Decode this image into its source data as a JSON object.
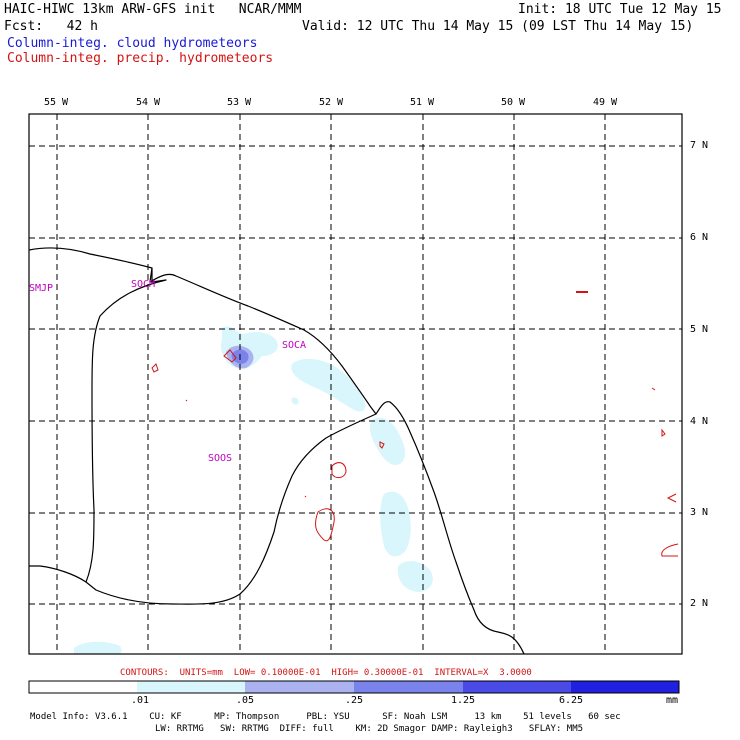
{
  "header": {
    "title": "HAIC-HIWC 13km ARW-GFS init   NCAR/MMM",
    "init": "Init: 18 UTC Tue 12 May 15",
    "fcst": "Fcst:   42 h",
    "valid": "Valid: 12 UTC Thu 14 May 15 (09 LST Thu 14 May 15)",
    "field1": "Column-integ. cloud hydrometeors",
    "field2": "Column-integ. precip. hydrometeors"
  },
  "colors": {
    "field1": "#1a1ad6",
    "field2": "#d41414",
    "station": "#c000c0",
    "cloud_light": "#d8f6fc",
    "cloud_mid": "#aab3f0",
    "cloud_dark": "#7a82ec",
    "precip_contour": "#d41414"
  },
  "map": {
    "lon_labels": [
      "55 W",
      "54 W",
      "53 W",
      "52 W",
      "51 W",
      "50 W",
      "49 W"
    ],
    "lat_labels": [
      "7 N",
      "6 N",
      "5 N",
      "4 N",
      "3 N",
      "2 N"
    ],
    "stations": [
      "SMJP",
      "SOCM",
      "SOCA",
      "SOOS"
    ]
  },
  "footer": {
    "contours": "CONTOURS:  UNITS=mm  LOW= 0.10000E-01  HIGH= 0.30000E-01  INTERVAL=X  3.0000",
    "colorbar_labels": [
      ".01",
      ".05",
      ".25",
      "1.25",
      "6.25"
    ],
    "colorbar_unit": "mm",
    "colorbar_colors": [
      "#ffffff",
      "#d8f6fc",
      "#aab3f0",
      "#7a82ec",
      "#4a4ae6",
      "#2020e0"
    ],
    "model_line1": "Model Info: V3.6.1    CU: KF      MP: Thompson     PBL: YSU      SF: Noah LSM     13 km    51 levels   60 sec",
    "model_line2": "LW: RRTMG   SW: RRTMG  DIFF: full    KM: 2D Smagor DAMP: Rayleigh3   SFLAY: MM5"
  }
}
